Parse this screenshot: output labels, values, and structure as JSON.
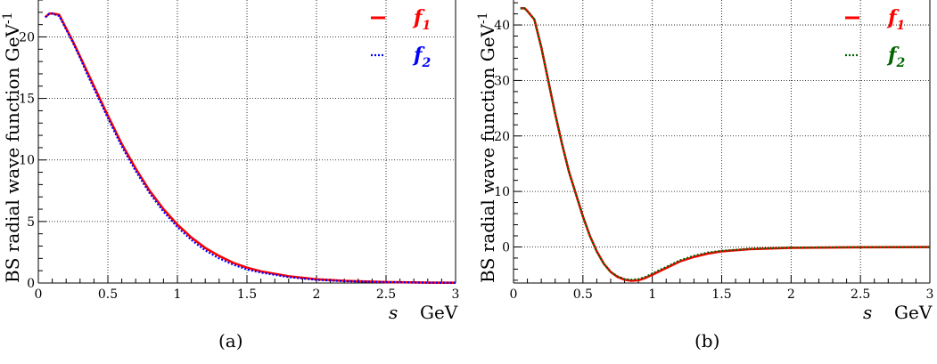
{
  "chart_data": [
    {
      "type": "line",
      "caption": "(a)",
      "xlabel": "s",
      "xunit": "GeV",
      "ylabel": "BS radial wave function GeV",
      "ylabel_superscript": "-1",
      "xlim": [
        0,
        3
      ],
      "ylim": [
        0,
        23
      ],
      "xticks": [
        "0",
        "0.5",
        "1",
        "1.5",
        "2",
        "2.5",
        "3"
      ],
      "yticks": [
        "0",
        "5",
        "10",
        "15",
        "20"
      ],
      "grid": true,
      "legend": "top-right",
      "series": [
        {
          "name": "f",
          "subscript": "1",
          "color": "#ff0000",
          "style": "solid",
          "x": [
            0.05,
            0.08,
            0.1,
            0.15,
            0.2,
            0.25,
            0.3,
            0.35,
            0.4,
            0.5,
            0.6,
            0.7,
            0.8,
            0.9,
            1.0,
            1.1,
            1.2,
            1.3,
            1.4,
            1.5,
            1.6,
            1.8,
            2.0,
            2.2,
            2.5,
            2.8,
            3.0
          ],
          "values": [
            21.6,
            21.9,
            21.9,
            21.8,
            20.7,
            19.6,
            18.4,
            17.2,
            16.0,
            13.6,
            11.3,
            9.3,
            7.5,
            6.0,
            4.75,
            3.7,
            2.85,
            2.2,
            1.65,
            1.25,
            0.95,
            0.55,
            0.3,
            0.18,
            0.08,
            0.03,
            0.02
          ]
        },
        {
          "name": "f",
          "subscript": "2",
          "color": "#0000ff",
          "style": "dotted",
          "x": [
            0.05,
            0.08,
            0.1,
            0.15,
            0.2,
            0.25,
            0.3,
            0.35,
            0.4,
            0.5,
            0.6,
            0.7,
            0.8,
            0.9,
            1.0,
            1.1,
            1.2,
            1.3,
            1.4,
            1.5,
            1.6,
            1.8,
            2.0,
            2.2,
            2.5,
            2.8,
            3.0
          ],
          "values": [
            21.6,
            21.9,
            21.9,
            21.7,
            20.6,
            19.5,
            18.3,
            17.0,
            15.8,
            13.4,
            11.1,
            9.1,
            7.3,
            5.8,
            4.55,
            3.5,
            2.65,
            2.0,
            1.5,
            1.1,
            0.85,
            0.48,
            0.26,
            0.15,
            0.07,
            0.03,
            0.02
          ]
        }
      ]
    },
    {
      "type": "line",
      "caption": "(b)",
      "xlabel": "s",
      "xunit": "GeV",
      "ylabel": "BS radial wave function GeV",
      "ylabel_superscript": "-1",
      "xlim": [
        0,
        3
      ],
      "ylim": [
        -6.5,
        44.5
      ],
      "xticks": [
        "0",
        "0.5",
        "1",
        "1.5",
        "2",
        "2.5",
        "3"
      ],
      "yticks": [
        "0",
        "10",
        "20",
        "30",
        "40"
      ],
      "grid": true,
      "legend": "top-right",
      "series": [
        {
          "name": "f",
          "subscript": "1",
          "color": "#ff0000",
          "style": "solid",
          "x": [
            0.05,
            0.08,
            0.1,
            0.15,
            0.2,
            0.25,
            0.3,
            0.35,
            0.4,
            0.45,
            0.5,
            0.55,
            0.6,
            0.65,
            0.7,
            0.75,
            0.8,
            0.85,
            0.9,
            0.95,
            1.0,
            1.1,
            1.2,
            1.3,
            1.4,
            1.5,
            1.7,
            2.0,
            2.5,
            3.0
          ],
          "values": [
            43.0,
            43.0,
            42.5,
            41.0,
            36.0,
            30.0,
            24.0,
            18.5,
            13.5,
            9.5,
            5.5,
            2.0,
            -0.8,
            -3.0,
            -4.5,
            -5.4,
            -5.9,
            -6.1,
            -6.0,
            -5.6,
            -5.0,
            -3.8,
            -2.6,
            -1.8,
            -1.2,
            -0.8,
            -0.4,
            -0.15,
            -0.05,
            -0.02
          ]
        },
        {
          "name": "f",
          "subscript": "2",
          "color": "#006400",
          "style": "dotted",
          "x": [
            0.05,
            0.08,
            0.1,
            0.15,
            0.2,
            0.25,
            0.3,
            0.35,
            0.4,
            0.45,
            0.5,
            0.55,
            0.6,
            0.65,
            0.7,
            0.75,
            0.8,
            0.85,
            0.9,
            0.95,
            1.0,
            1.1,
            1.2,
            1.3,
            1.4,
            1.5,
            1.7,
            2.0,
            2.5,
            3.0
          ],
          "values": [
            43.0,
            43.0,
            42.5,
            41.0,
            36.0,
            30.0,
            24.0,
            18.5,
            13.5,
            9.5,
            5.5,
            2.0,
            -0.8,
            -3.0,
            -4.5,
            -5.3,
            -5.8,
            -5.9,
            -5.8,
            -5.4,
            -4.8,
            -3.6,
            -2.4,
            -1.6,
            -1.0,
            -0.7,
            -0.35,
            -0.12,
            -0.04,
            -0.02
          ]
        }
      ]
    }
  ]
}
